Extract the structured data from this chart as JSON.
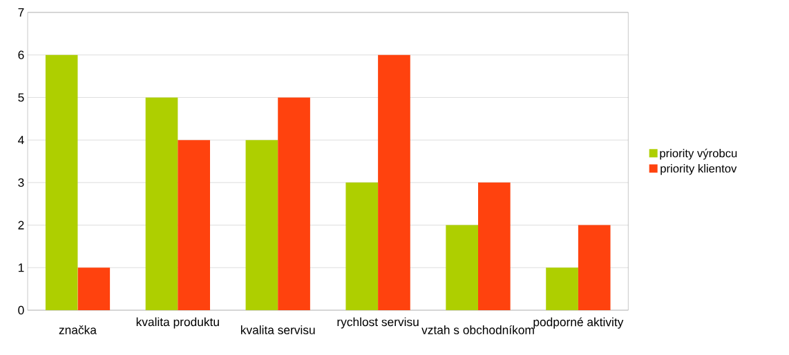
{
  "chart_data": {
    "type": "bar",
    "categories": [
      "značka",
      "kvalita produktu",
      "kvalita servisu",
      "rychlost servisu",
      "vztah s obchodníkom",
      "podporné aktivity"
    ],
    "series": [
      {
        "name": "priority výrobcu",
        "color": "#aecf00",
        "values": [
          6,
          5,
          4,
          3,
          2,
          1
        ]
      },
      {
        "name": "priority klientov",
        "color": "#ff420e",
        "values": [
          1,
          4,
          5,
          6,
          3,
          2
        ]
      }
    ],
    "ylim": [
      0,
      7
    ],
    "yticks": [
      0,
      1,
      2,
      3,
      4,
      5,
      6,
      7
    ],
    "grid": "y",
    "legend": "right"
  }
}
